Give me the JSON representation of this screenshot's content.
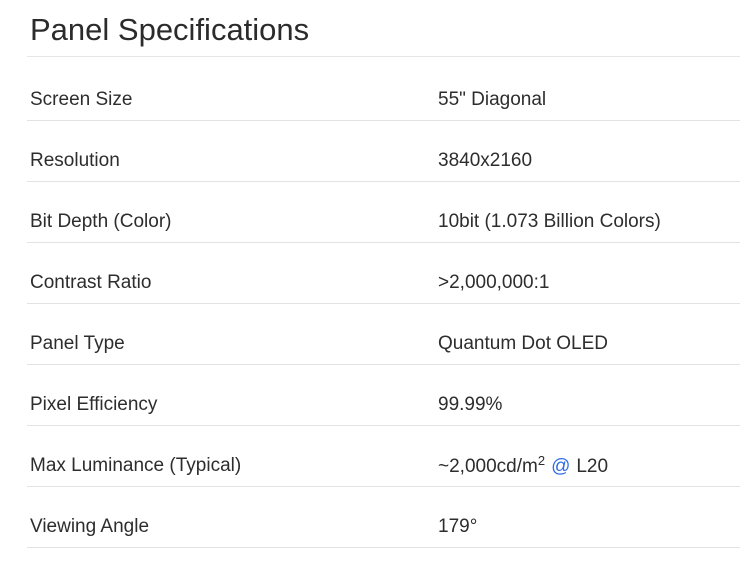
{
  "page": {
    "title": "Panel Specifications"
  },
  "colors": {
    "background": "#ffffff",
    "text": "#2d2d2d",
    "divider": "#e3e3e3",
    "link_blue": "#2e6ce6"
  },
  "specs": {
    "rows": [
      {
        "label": "Screen Size",
        "value": "55\" Diagonal"
      },
      {
        "label": "Resolution",
        "value": "3840x2160"
      },
      {
        "label": "Bit Depth (Color)",
        "value": "10bit (1.073 Billion Colors)"
      },
      {
        "label": "Contrast Ratio",
        "value": ">2,000,000:1"
      },
      {
        "label": "Panel Type",
        "value": "Quantum Dot OLED"
      },
      {
        "label": "Pixel Efficiency",
        "value": "99.99%"
      },
      {
        "label": "Max Luminance (Typical)",
        "value_prefix": "~2,000cd/m",
        "value_superscript": "2",
        "value_link": "@",
        "value_suffix": "L20"
      },
      {
        "label": "Viewing Angle",
        "value": "179°"
      }
    ]
  }
}
